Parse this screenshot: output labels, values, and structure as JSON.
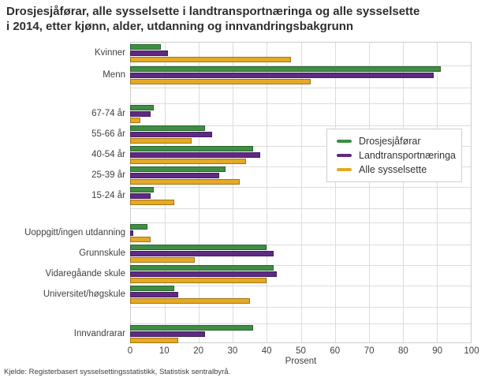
{
  "title_lines": [
    "Drosjesjåførar, alle sysselsette i landtransportnæringa og alle sysselsette",
    "i 2014, etter kjønn, alder, utdanning og innvandringsbakgrunn"
  ],
  "source": "Kjelde: Registerbasert sysselsettingsstatistikk, Statistisk sentralbyrå.",
  "chart_data": {
    "type": "bar",
    "orientation": "horizontal",
    "title": "Drosjesjåførar, alle sysselsette i landtransportnæringa og alle sysselsette i 2014, etter kjønn, alder, utdanning og innvandringsbakgrunn",
    "xlabel": "Prosent",
    "xlim": [
      0,
      100
    ],
    "xticks": [
      0,
      10,
      20,
      30,
      40,
      50,
      60,
      70,
      80,
      90,
      100
    ],
    "grid": true,
    "legend_position": "center-right-inside",
    "series": [
      {
        "name": "Drosjesjåførar",
        "color": "#3e8e44"
      },
      {
        "name": "Landtransportnæringa",
        "color": "#5f2a83"
      },
      {
        "name": "Alle sysselsette",
        "color": "#e5a924"
      }
    ],
    "groups": [
      {
        "categories": [
          {
            "label": "Kvinner",
            "values": [
              9,
              11,
              47
            ]
          },
          {
            "label": "Menn",
            "values": [
              91,
              89,
              53
            ]
          }
        ]
      },
      {
        "categories": [
          {
            "label": "67-74 år",
            "values": [
              7,
              6,
              3
            ]
          },
          {
            "label": "55-66 år",
            "values": [
              22,
              24,
              18
            ]
          },
          {
            "label": "40-54 år",
            "values": [
              36,
              38,
              34
            ]
          },
          {
            "label": "25-39 år",
            "values": [
              28,
              26,
              32
            ]
          },
          {
            "label": "15-24 år",
            "values": [
              7,
              6,
              13
            ]
          }
        ]
      },
      {
        "categories": [
          {
            "label": "Uoppgitt/ingen utdanning",
            "values": [
              5,
              1,
              6
            ]
          },
          {
            "label": "Grunnskule",
            "values": [
              40,
              42,
              19
            ]
          },
          {
            "label": "Vidaregåande skule",
            "values": [
              42,
              43,
              40
            ]
          },
          {
            "label": "Universitet/høgskule",
            "values": [
              13,
              14,
              35
            ]
          }
        ]
      },
      {
        "categories": [
          {
            "label": "Innvandrarar",
            "values": [
              36,
              22,
              14
            ]
          }
        ]
      }
    ]
  }
}
